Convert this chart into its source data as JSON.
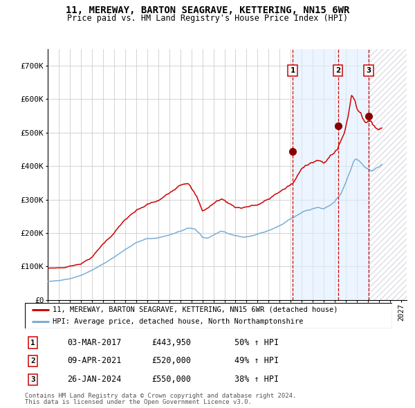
{
  "title1": "11, MEREWAY, BARTON SEAGRAVE, KETTERING, NN15 6WR",
  "title2": "Price paid vs. HM Land Registry's House Price Index (HPI)",
  "ylim": [
    0,
    750000
  ],
  "yticks": [
    0,
    100000,
    200000,
    300000,
    400000,
    500000,
    600000,
    700000
  ],
  "ytick_labels": [
    "£0",
    "£100K",
    "£200K",
    "£300K",
    "£400K",
    "£500K",
    "£600K",
    "£700K"
  ],
  "sale_dates_num": [
    2017.167,
    2021.271,
    2024.069
  ],
  "sale_prices": [
    443950,
    520000,
    550000
  ],
  "sale_labels": [
    "1",
    "2",
    "3"
  ],
  "vline_dates": [
    2017.167,
    2021.271,
    2024.069
  ],
  "shade_start": 2017.167,
  "shade_end": 2024.069,
  "future_start": 2024.069,
  "xmin": 1995.0,
  "xmax": 2027.5,
  "red_line_color": "#cc0000",
  "blue_line_color": "#7aadd4",
  "dot_color": "#880000",
  "vline_color": "#cc0000",
  "shade_color": "#ddeeff",
  "grid_color": "#cccccc",
  "legend_label1": "11, MEREWAY, BARTON SEAGRAVE, KETTERING, NN15 6WR (detached house)",
  "legend_label2": "HPI: Average price, detached house, North Northamptonshire",
  "table_rows": [
    [
      "1",
      "03-MAR-2017",
      "£443,950",
      "50% ↑ HPI"
    ],
    [
      "2",
      "09-APR-2021",
      "£520,000",
      "49% ↑ HPI"
    ],
    [
      "3",
      "26-JAN-2024",
      "£550,000",
      "38% ↑ HPI"
    ]
  ],
  "footnote1": "Contains HM Land Registry data © Crown copyright and database right 2024.",
  "footnote2": "This data is licensed under the Open Government Licence v3.0."
}
